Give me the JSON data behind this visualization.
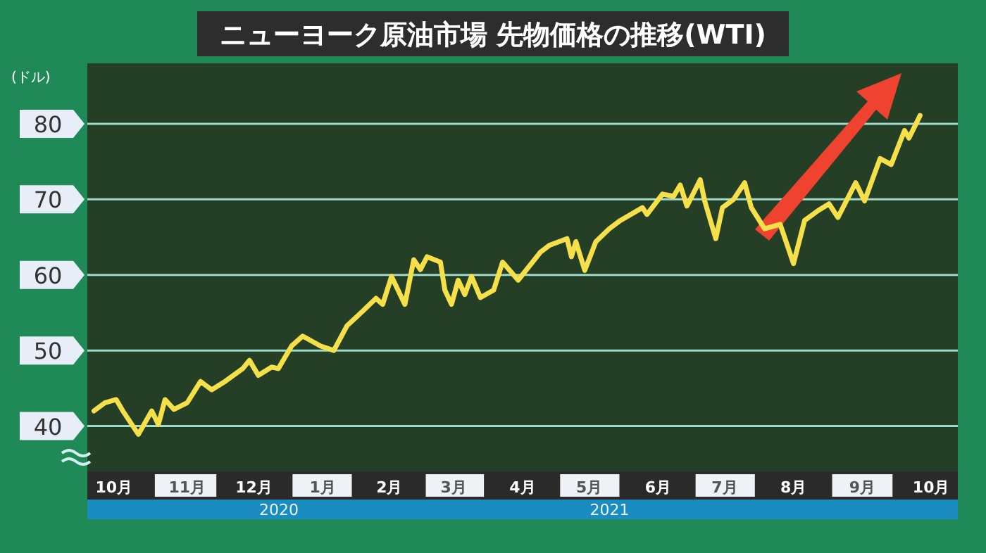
{
  "chart_data": {
    "type": "line",
    "title": "ニューヨーク原油市場  先物価格の推移(WTI)",
    "ylabel": "(ドル)",
    "x": [
      "2020-10-04",
      "2020-10-09",
      "2020-10-14",
      "2020-10-17",
      "2020-10-24",
      "2020-10-30",
      "2020-11-02",
      "2020-11-05",
      "2020-11-09",
      "2020-11-15",
      "2020-11-21",
      "2020-11-26",
      "2020-12-02",
      "2020-12-10",
      "2020-12-13",
      "2020-12-17",
      "2020-12-23",
      "2020-12-26",
      "2021-01-01",
      "2021-01-06",
      "2021-01-14",
      "2021-01-20",
      "2021-01-26",
      "2021-02-02",
      "2021-02-08",
      "2021-02-11",
      "2021-02-15",
      "2021-02-21",
      "2021-02-25",
      "2021-02-28",
      "2021-03-03",
      "2021-03-09",
      "2021-03-11",
      "2021-03-14",
      "2021-03-17",
      "2021-03-20",
      "2021-03-23",
      "2021-03-27",
      "2021-04-02",
      "2021-04-06",
      "2021-04-13",
      "2021-04-23",
      "2021-04-27",
      "2021-05-05",
      "2021-05-07",
      "2021-05-09",
      "2021-05-13",
      "2021-05-18",
      "2021-05-24",
      "2021-05-29",
      "2021-06-08",
      "2021-06-10",
      "2021-06-17",
      "2021-06-22",
      "2021-06-25",
      "2021-06-28",
      "2021-07-04",
      "2021-07-06",
      "2021-07-11",
      "2021-07-14",
      "2021-07-19",
      "2021-07-24",
      "2021-07-27",
      "2021-08-02",
      "2021-08-09",
      "2021-08-15",
      "2021-08-20",
      "2021-08-26",
      "2021-08-31",
      "2021-09-04",
      "2021-09-12",
      "2021-09-16",
      "2021-09-23",
      "2021-09-28",
      "2021-10-04",
      "2021-10-06",
      "2021-10-11"
    ],
    "series": [
      {
        "color": "#f5e04a",
        "values": [
          42.0,
          43.1,
          43.5,
          42.0,
          38.9,
          42.0,
          40.2,
          43.5,
          42.2,
          43.1,
          45.9,
          44.8,
          45.9,
          47.6,
          48.7,
          46.7,
          47.8,
          47.6,
          50.6,
          51.9,
          50.6,
          50.0,
          53.3,
          55.2,
          56.9,
          56.1,
          59.8,
          56.1,
          62.0,
          60.7,
          62.4,
          61.7,
          58.0,
          56.1,
          59.3,
          57.4,
          59.8,
          57.0,
          58.0,
          61.7,
          59.3,
          63.0,
          63.9,
          64.8,
          62.4,
          64.4,
          60.6,
          64.4,
          66.1,
          67.2,
          68.9,
          68.0,
          70.7,
          70.4,
          71.9,
          69.1,
          72.6,
          69.8,
          64.8,
          68.9,
          70.0,
          72.2,
          68.9,
          66.1,
          66.7,
          61.5,
          67.2,
          68.5,
          69.4,
          67.6,
          72.2,
          69.8,
          75.4,
          74.6,
          79.1,
          78.1,
          81.1
        ]
      }
    ],
    "xlim": [
      "2020-10-01",
      "2021-10-28"
    ],
    "xticks": [
      {
        "value": "2020-10-13",
        "label": "10月"
      },
      {
        "value": "2020-11-15",
        "label": "11月"
      },
      {
        "value": "2020-12-15",
        "label": "12月"
      },
      {
        "value": "2021-01-15",
        "label": "1月"
      },
      {
        "value": "2021-02-14",
        "label": "2月"
      },
      {
        "value": "2021-03-15",
        "label": "3月"
      },
      {
        "value": "2021-04-15",
        "label": "4月"
      },
      {
        "value": "2021-05-15",
        "label": "5月"
      },
      {
        "value": "2021-06-15",
        "label": "6月"
      },
      {
        "value": "2021-07-15",
        "label": "7月"
      },
      {
        "value": "2021-08-15",
        "label": "8月"
      },
      {
        "value": "2021-09-15",
        "label": "9月"
      },
      {
        "value": "2021-10-16",
        "label": "10月"
      }
    ],
    "ylim": [
      34,
      88
    ],
    "yticks": [
      40,
      50,
      60,
      70,
      80
    ],
    "grid": "y",
    "annotations": [
      "2020",
      "2021"
    ]
  }
}
